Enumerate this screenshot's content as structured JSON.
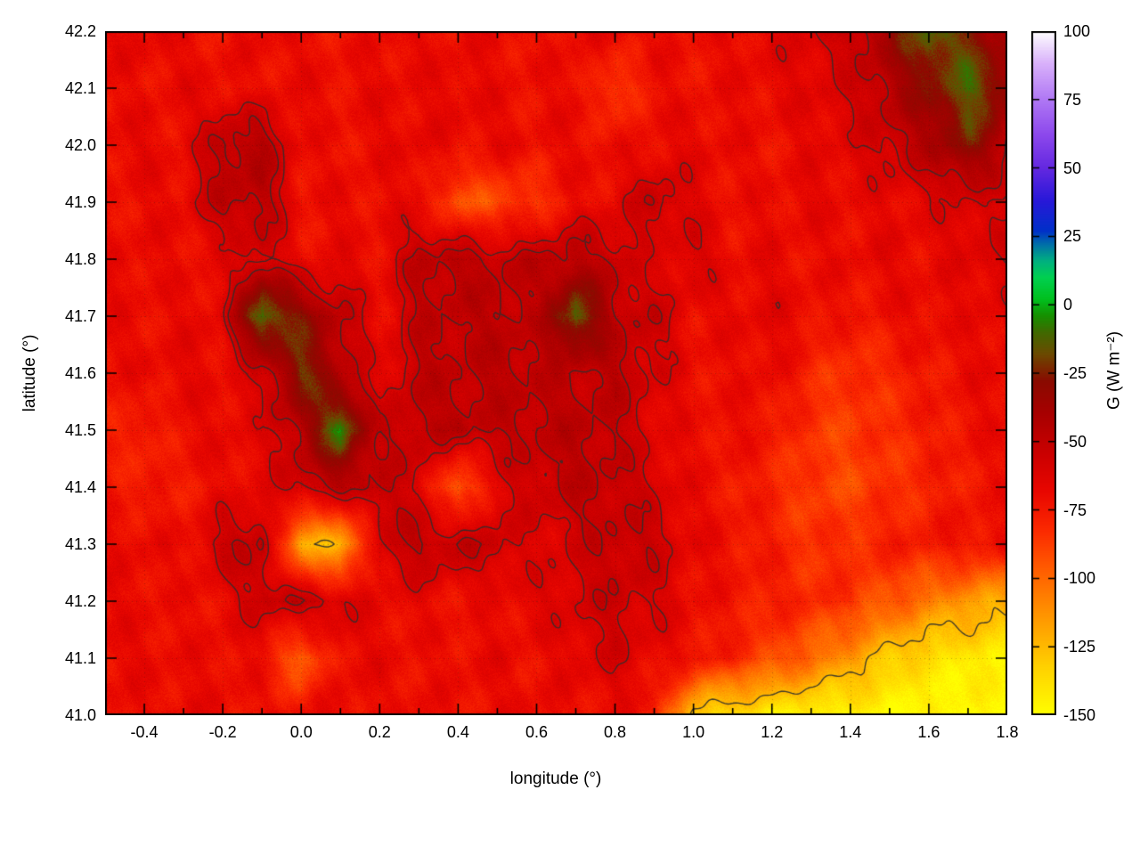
{
  "figure": {
    "background": "#ffffff"
  },
  "chart_data": {
    "type": "heatmap",
    "title": "",
    "xlabel": "longitude (°)",
    "ylabel": "latitude (°)",
    "colorbar_label": "G (W m⁻²)",
    "xlim": [
      -0.5,
      1.8
    ],
    "ylim": [
      41.0,
      42.2
    ],
    "clim": [
      -150,
      100
    ],
    "grid_dotted": true,
    "contour_color": "#2e2e2e",
    "contour_levels": [
      -60,
      -52,
      -125
    ],
    "x_ticks": [
      {
        "value": -0.4,
        "label": "-0.4"
      },
      {
        "value": -0.2,
        "label": "-0.2"
      },
      {
        "value": 0.0,
        "label": "0.0"
      },
      {
        "value": 0.2,
        "label": "0.2"
      },
      {
        "value": 0.4,
        "label": "0.4"
      },
      {
        "value": 0.6,
        "label": "0.6"
      },
      {
        "value": 0.8,
        "label": "0.8"
      },
      {
        "value": 1.0,
        "label": "1.0"
      },
      {
        "value": 1.2,
        "label": "1.2"
      },
      {
        "value": 1.4,
        "label": "1.4"
      },
      {
        "value": 1.6,
        "label": "1.6"
      },
      {
        "value": 1.8,
        "label": "1.8"
      }
    ],
    "x_minor_ticks": [
      -0.3,
      -0.1,
      0.1,
      0.3,
      0.5,
      0.7,
      0.9,
      1.1,
      1.3,
      1.5,
      1.7
    ],
    "y_ticks": [
      {
        "value": 41.0,
        "label": "41.0"
      },
      {
        "value": 41.1,
        "label": "41.1"
      },
      {
        "value": 41.2,
        "label": "41.2"
      },
      {
        "value": 41.3,
        "label": "41.3"
      },
      {
        "value": 41.4,
        "label": "41.4"
      },
      {
        "value": 41.5,
        "label": "41.5"
      },
      {
        "value": 41.6,
        "label": "41.6"
      },
      {
        "value": 41.7,
        "label": "41.7"
      },
      {
        "value": 41.8,
        "label": "41.8"
      },
      {
        "value": 41.9,
        "label": "41.9"
      },
      {
        "value": 42.0,
        "label": "42.0"
      },
      {
        "value": 42.1,
        "label": "42.1"
      },
      {
        "value": 42.2,
        "label": "42.2"
      }
    ],
    "cb_ticks": [
      {
        "value": 100,
        "label": "100"
      },
      {
        "value": 75,
        "label": "75"
      },
      {
        "value": 50,
        "label": "50"
      },
      {
        "value": 25,
        "label": "25"
      },
      {
        "value": 0,
        "label": "0"
      },
      {
        "value": -25,
        "label": "-25"
      },
      {
        "value": -50,
        "label": "-50"
      },
      {
        "value": -75,
        "label": "-75"
      },
      {
        "value": -100,
        "label": "-100"
      },
      {
        "value": -125,
        "label": "-125"
      },
      {
        "value": -150,
        "label": "-150"
      }
    ],
    "palette": [
      {
        "value": -150,
        "color": "#ffff00"
      },
      {
        "value": -132,
        "color": "#ffd000"
      },
      {
        "value": -112,
        "color": "#ff9000"
      },
      {
        "value": -96,
        "color": "#ff5a00"
      },
      {
        "value": -82,
        "color": "#fb2800"
      },
      {
        "value": -68,
        "color": "#e80600"
      },
      {
        "value": -55,
        "color": "#cc0000"
      },
      {
        "value": -40,
        "color": "#a80000"
      },
      {
        "value": -28,
        "color": "#8a0a00"
      },
      {
        "value": -18,
        "color": "#6b4a00"
      },
      {
        "value": -10,
        "color": "#3f6a00"
      },
      {
        "value": -4,
        "color": "#159000"
      },
      {
        "value": 2,
        "color": "#00c01e"
      },
      {
        "value": 10,
        "color": "#00d050"
      },
      {
        "value": 16,
        "color": "#00b080"
      },
      {
        "value": 22,
        "color": "#0070a8"
      },
      {
        "value": 27,
        "color": "#0030c8"
      },
      {
        "value": 38,
        "color": "#2818d8"
      },
      {
        "value": 50,
        "color": "#6428e0"
      },
      {
        "value": 62,
        "color": "#8c48ec"
      },
      {
        "value": 75,
        "color": "#b078f4"
      },
      {
        "value": 88,
        "color": "#d8b0fa"
      },
      {
        "value": 100,
        "color": "#ffffff"
      }
    ],
    "grid": {
      "lon": [
        -0.5,
        -0.4,
        -0.3,
        -0.2,
        -0.1,
        0.0,
        0.1,
        0.2,
        0.3,
        0.4,
        0.5,
        0.6,
        0.7,
        0.8,
        0.9,
        1.0,
        1.1,
        1.2,
        1.3,
        1.4,
        1.5,
        1.6,
        1.7,
        1.8
      ],
      "lat": [
        42.2,
        42.1,
        42.0,
        41.9,
        41.8,
        41.7,
        41.6,
        41.5,
        41.4,
        41.3,
        41.2,
        41.1,
        41.0
      ],
      "values": [
        [
          -68,
          -66,
          -70,
          -72,
          -68,
          -70,
          -73,
          -70,
          -68,
          -71,
          -69,
          -72,
          -70,
          -67,
          -70,
          -72,
          -69,
          -66,
          -62,
          -55,
          -35,
          -10,
          -25,
          -45
        ],
        [
          -70,
          -72,
          -68,
          -70,
          -72,
          -69,
          -71,
          -68,
          -70,
          -66,
          -70,
          -72,
          -68,
          -90,
          -70,
          -72,
          -70,
          -68,
          -65,
          -60,
          -45,
          -30,
          -12,
          -30
        ],
        [
          -69,
          -67,
          -71,
          -48,
          -45,
          -70,
          -72,
          -69,
          -67,
          -70,
          -68,
          -71,
          -69,
          -72,
          -70,
          -67,
          -70,
          -72,
          -68,
          -65,
          -55,
          -45,
          -25,
          -50
        ],
        [
          -72,
          -70,
          -68,
          -50,
          -48,
          -72,
          -69,
          -71,
          -68,
          -95,
          -90,
          -85,
          -70,
          -68,
          -52,
          -65,
          -72,
          -70,
          -67,
          -70,
          -68,
          -65,
          -60,
          -62
        ],
        [
          -70,
          -68,
          -71,
          -69,
          -55,
          -71,
          -68,
          -70,
          -50,
          -48,
          -52,
          -50,
          -48,
          -52,
          -68,
          -60,
          -70,
          -68,
          -71,
          -69,
          -67,
          -70,
          -65,
          -60
        ],
        [
          -68,
          -71,
          -69,
          -66,
          -5,
          -30,
          -50,
          -70,
          -52,
          -50,
          -48,
          -52,
          -10,
          -50,
          -55,
          -70,
          -68,
          -66,
          -70,
          -75,
          -72,
          -68,
          -70,
          -65
        ],
        [
          -71,
          -69,
          -67,
          -70,
          -60,
          -20,
          -45,
          -68,
          -50,
          -52,
          -48,
          -50,
          -52,
          -48,
          -60,
          -70,
          -72,
          -68,
          -80,
          -85,
          -80,
          -75,
          -70,
          -68
        ],
        [
          -75,
          -80,
          -70,
          -68,
          -66,
          -45,
          -5,
          -55,
          -50,
          -48,
          -52,
          -50,
          -48,
          -52,
          -65,
          -72,
          -70,
          -75,
          -85,
          -88,
          -82,
          -78,
          -72,
          -70
        ],
        [
          -72,
          -78,
          -75,
          -70,
          -68,
          -55,
          -50,
          -52,
          -60,
          -100,
          -65,
          -55,
          -50,
          -52,
          -60,
          -70,
          -75,
          -80,
          -88,
          -90,
          -85,
          -80,
          -75,
          -72
        ],
        [
          -70,
          -68,
          -72,
          -55,
          -50,
          -120,
          -125,
          -60,
          -50,
          -52,
          -55,
          -65,
          -58,
          -52,
          -55,
          -68,
          -72,
          -78,
          -85,
          -82,
          -78,
          -75,
          -72,
          -70
        ],
        [
          -68,
          -70,
          -72,
          -69,
          -55,
          -52,
          -58,
          -70,
          -68,
          -72,
          -70,
          -65,
          -60,
          -55,
          -60,
          -70,
          -75,
          -78,
          -80,
          -85,
          -95,
          -105,
          -115,
          -120
        ],
        [
          -70,
          -68,
          -71,
          -69,
          -72,
          -100,
          -70,
          -68,
          -72,
          -70,
          -68,
          -72,
          -65,
          -60,
          -68,
          -72,
          -80,
          -90,
          -100,
          -115,
          -130,
          -138,
          -142,
          -144
        ],
        [
          -69,
          -71,
          -68,
          -70,
          -72,
          -70,
          -68,
          -71,
          -69,
          -72,
          -70,
          -68,
          -72,
          -70,
          -75,
          -130,
          -140,
          -144,
          -146,
          -147,
          -148,
          -148,
          -148,
          -148
        ]
      ]
    }
  }
}
